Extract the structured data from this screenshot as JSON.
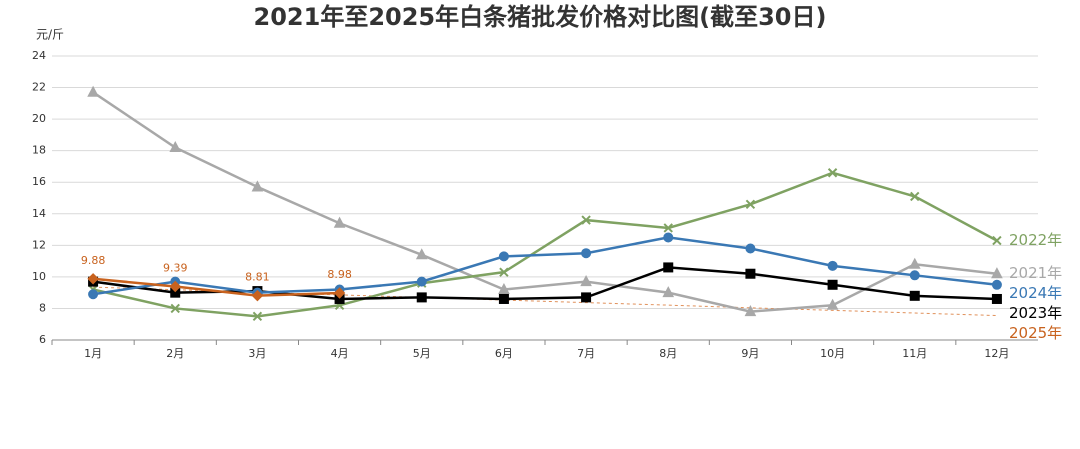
{
  "chart_data": {
    "type": "line",
    "title": "2021年至2025年白条猪批发价格对比图(截至30日)",
    "y_label": "元/斤",
    "categories": [
      "1月",
      "2月",
      "3月",
      "4月",
      "5月",
      "6月",
      "7月",
      "8月",
      "9月",
      "10月",
      "11月",
      "12月"
    ],
    "ylim": [
      6,
      24
    ],
    "yticks": [
      6,
      8,
      10,
      12,
      14,
      16,
      18,
      20,
      22,
      24
    ],
    "grid": true,
    "series": [
      {
        "name": "2021年",
        "color": "#a8a8a8",
        "marker": "triangle",
        "values": [
          21.7,
          18.2,
          15.7,
          13.4,
          11.4,
          9.2,
          9.7,
          9.0,
          7.8,
          8.2,
          10.8,
          10.2
        ]
      },
      {
        "name": "2022年",
        "color": "#7fa262",
        "marker": "x",
        "values": [
          9.2,
          8.0,
          7.5,
          8.2,
          9.6,
          10.3,
          13.6,
          13.1,
          14.6,
          16.6,
          15.1,
          12.3
        ]
      },
      {
        "name": "2023年",
        "color": "#000000",
        "marker": "square",
        "values": [
          9.7,
          9.0,
          9.1,
          8.6,
          8.7,
          8.6,
          8.7,
          10.6,
          10.2,
          9.5,
          8.8,
          8.6
        ]
      },
      {
        "name": "2024年",
        "color": "#3a78b4",
        "marker": "circle",
        "values": [
          8.9,
          9.7,
          9.0,
          9.2,
          9.7,
          11.3,
          11.5,
          12.5,
          11.8,
          10.7,
          10.1,
          9.5
        ]
      },
      {
        "name": "2025年",
        "color": "#c8621e",
        "marker": "diamond",
        "data_labels": true,
        "values": [
          9.88,
          9.39,
          8.81,
          8.98,
          null,
          null,
          null,
          null,
          null,
          null,
          null,
          null
        ]
      }
    ],
    "trendline": {
      "color": "#e0905a",
      "values": [
        9.35,
        9.19,
        9.02,
        8.86,
        8.7,
        8.53,
        8.37,
        8.21,
        8.04,
        7.88,
        7.71,
        7.55
      ]
    }
  }
}
